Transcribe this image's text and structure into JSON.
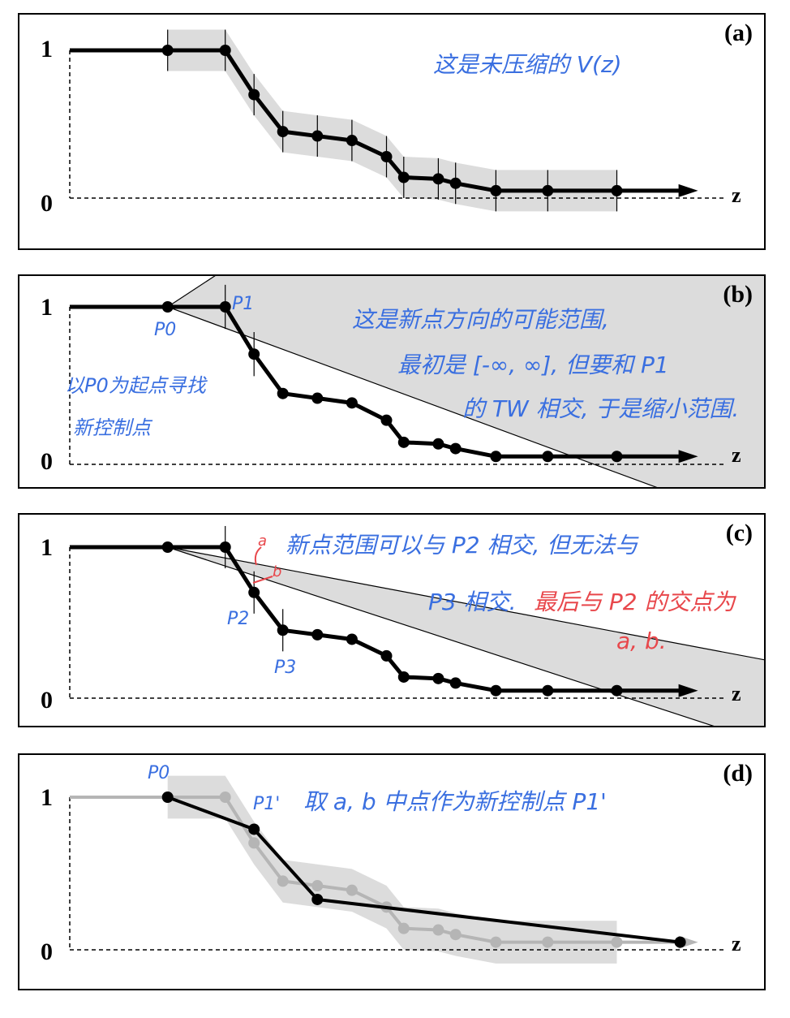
{
  "colors": {
    "ink": "#000000",
    "band": "#dcdcdc",
    "gray_series": "#b5b5b5",
    "note_blue": "#3a6fe0",
    "note_red": "#e8474b"
  },
  "axis": {
    "y_top_label": "1",
    "y_bottom_label": "0",
    "x_label": "z"
  },
  "chart_data": {
    "type": "line",
    "series_points": [
      [
        0.0,
        1.0
      ],
      [
        0.17,
        1.0
      ],
      [
        0.27,
        1.0
      ],
      [
        0.32,
        0.7
      ],
      [
        0.37,
        0.45
      ],
      [
        0.43,
        0.42
      ],
      [
        0.49,
        0.39
      ],
      [
        0.55,
        0.28
      ],
      [
        0.58,
        0.14
      ],
      [
        0.64,
        0.13
      ],
      [
        0.67,
        0.1
      ],
      [
        0.74,
        0.05
      ],
      [
        0.83,
        0.05
      ],
      [
        0.95,
        0.05
      ],
      [
        1.06,
        0.05
      ]
    ],
    "marker_indices": [
      1,
      2,
      3,
      4,
      5,
      6,
      7,
      8,
      9,
      10,
      11,
      12,
      13,
      14
    ],
    "tolerance": 0.28,
    "compressed_points": [
      [
        0.17,
        1.0
      ],
      [
        0.32,
        0.79
      ],
      [
        0.43,
        0.33
      ],
      [
        1.06,
        0.05
      ]
    ],
    "cone_b": {
      "upper_slope": 2.4,
      "lower_slope": -1.35
    },
    "cone_c": {
      "upper_slope": -0.72,
      "lower_slope": -1.25
    }
  },
  "panels": [
    {
      "label": "(a)",
      "notes": [
        "这是未压缩的 V(z)"
      ]
    },
    {
      "label": "(b)",
      "tags": {
        "p0": "P0",
        "p1": "P1"
      },
      "notes": [
        "这是新点方向的可能范围,",
        "最初是 [-∞, ∞], 但要和 P1",
        "的 TW 相交, 于是缩小范围."
      ],
      "side_notes": [
        "以P0为起点寻找",
        "新控制点"
      ]
    },
    {
      "label": "(c)",
      "tags": {
        "p2": "P2",
        "p3": "P3",
        "a": "a",
        "b": "b"
      },
      "notes": [
        "新点范围可以与 P2 相交, 但无法与",
        "P3 相交."
      ],
      "red_notes": [
        "最后与 P2 的交点为",
        "a, b."
      ]
    },
    {
      "label": "(d)",
      "tags": {
        "p0": "P0",
        "p1prime": "P1'"
      },
      "notes": [
        "取 a, b 中点作为新控制点 P1'"
      ]
    }
  ]
}
